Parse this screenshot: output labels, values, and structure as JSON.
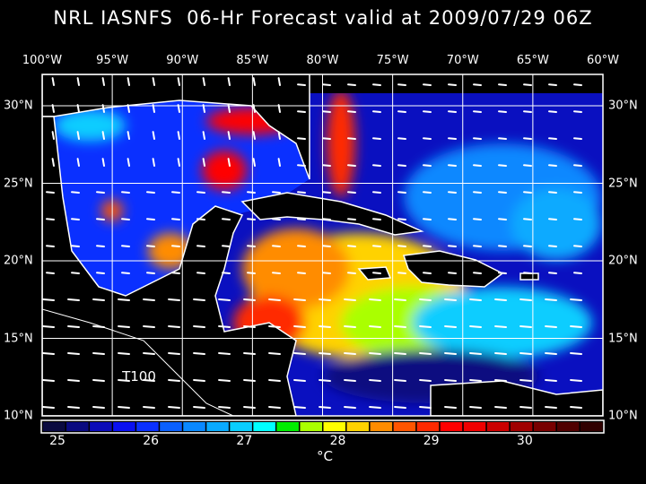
{
  "title": "NRL IASNFS  06-Hr Forecast valid at 2009/07/29 06Z",
  "lon_labels": [
    "100°W",
    "95°W",
    "90°W",
    "85°W",
    "80°W",
    "75°W",
    "70°W",
    "65°W",
    "60°W"
  ],
  "lat_labels": [
    "30°N",
    "25°N",
    "20°N",
    "15°N",
    "10°N"
  ],
  "label_T100": "T100",
  "colorbar": {
    "labels": [
      "25",
      "26",
      "27",
      "28",
      "29",
      "30"
    ],
    "unit": "°C",
    "colors": [
      "#0a0a40",
      "#0a0a80",
      "#0c0cb8",
      "#0a10f0",
      "#0a30ff",
      "#0a60ff",
      "#0a88ff",
      "#0aaaff",
      "#0acdff",
      "#00ffff",
      "#00ee00",
      "#aaff00",
      "#ffff00",
      "#ffd200",
      "#ff8c00",
      "#ff5500",
      "#ff2a00",
      "#ff0000",
      "#f00000",
      "#cc0000",
      "#a00000",
      "#780000",
      "#500000",
      "#300000"
    ]
  }
}
